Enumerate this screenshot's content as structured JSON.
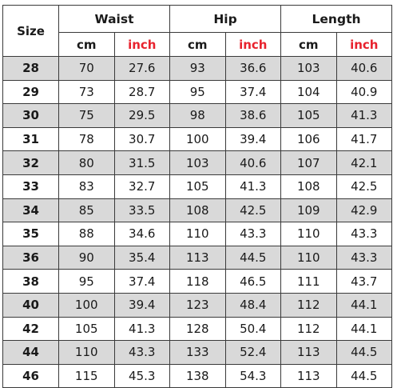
{
  "table": {
    "size_header": "Size",
    "groups": [
      "Waist",
      "Hip",
      "Length"
    ],
    "units": [
      "cm",
      "inch",
      "cm",
      "inch",
      "cm",
      "inch"
    ],
    "colors": {
      "inch_label": "#e8232e",
      "shaded_row": "#d9d9d9",
      "border": "#3a3a3a"
    },
    "rows": [
      [
        "28",
        "70",
        "27.6",
        "93",
        "36.6",
        "103",
        "40.6"
      ],
      [
        "29",
        "73",
        "28.7",
        "95",
        "37.4",
        "104",
        "40.9"
      ],
      [
        "30",
        "75",
        "29.5",
        "98",
        "38.6",
        "105",
        "41.3"
      ],
      [
        "31",
        "78",
        "30.7",
        "100",
        "39.4",
        "106",
        "41.7"
      ],
      [
        "32",
        "80",
        "31.5",
        "103",
        "40.6",
        "107",
        "42.1"
      ],
      [
        "33",
        "83",
        "32.7",
        "105",
        "41.3",
        "108",
        "42.5"
      ],
      [
        "34",
        "85",
        "33.5",
        "108",
        "42.5",
        "109",
        "42.9"
      ],
      [
        "35",
        "88",
        "34.6",
        "110",
        "43.3",
        "110",
        "43.3"
      ],
      [
        "36",
        "90",
        "35.4",
        "113",
        "44.5",
        "110",
        "43.3"
      ],
      [
        "38",
        "95",
        "37.4",
        "118",
        "46.5",
        "111",
        "43.7"
      ],
      [
        "40",
        "100",
        "39.4",
        "123",
        "48.4",
        "112",
        "44.1"
      ],
      [
        "42",
        "105",
        "41.3",
        "128",
        "50.4",
        "112",
        "44.1"
      ],
      [
        "44",
        "110",
        "43.3",
        "133",
        "52.4",
        "113",
        "44.5"
      ],
      [
        "46",
        "115",
        "45.3",
        "138",
        "54.3",
        "113",
        "44.5"
      ]
    ]
  }
}
